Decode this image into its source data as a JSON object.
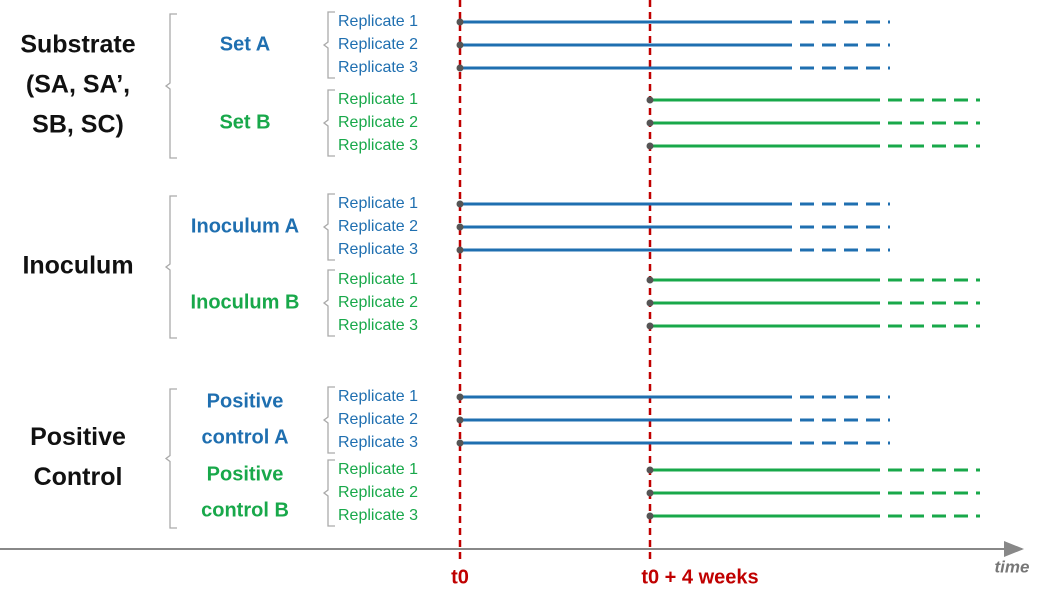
{
  "groups": [
    {
      "label": [
        "Substrate",
        "(SA, SA’,",
        "SB, SC)"
      ],
      "sets": [
        {
          "label": [
            "Set A"
          ],
          "replicates": [
            "Replicate 1",
            "Replicate 2",
            "Replicate 3"
          ]
        },
        {
          "label": [
            "Set B"
          ],
          "replicates": [
            "Replicate 1",
            "Replicate 2",
            "Replicate 3"
          ]
        }
      ]
    },
    {
      "label": [
        "Inoculum"
      ],
      "sets": [
        {
          "label": [
            "Inoculum A"
          ],
          "replicates": [
            "Replicate 1",
            "Replicate 2",
            "Replicate 3"
          ]
        },
        {
          "label": [
            "Inoculum B"
          ],
          "replicates": [
            "Replicate 1",
            "Replicate 2",
            "Replicate 3"
          ]
        }
      ]
    },
    {
      "label": [
        "Positive",
        "Control"
      ],
      "sets": [
        {
          "label": [
            "Positive",
            "control A"
          ],
          "replicates": [
            "Replicate 1",
            "Replicate 2",
            "Replicate 3"
          ]
        },
        {
          "label": [
            "Positive",
            "control B"
          ],
          "replicates": [
            "Replicate 1",
            "Replicate 2",
            "Replicate 3"
          ]
        }
      ]
    }
  ],
  "timeline": {
    "start": "t0",
    "later": "t0 + 4 weeks",
    "axis": "time"
  }
}
